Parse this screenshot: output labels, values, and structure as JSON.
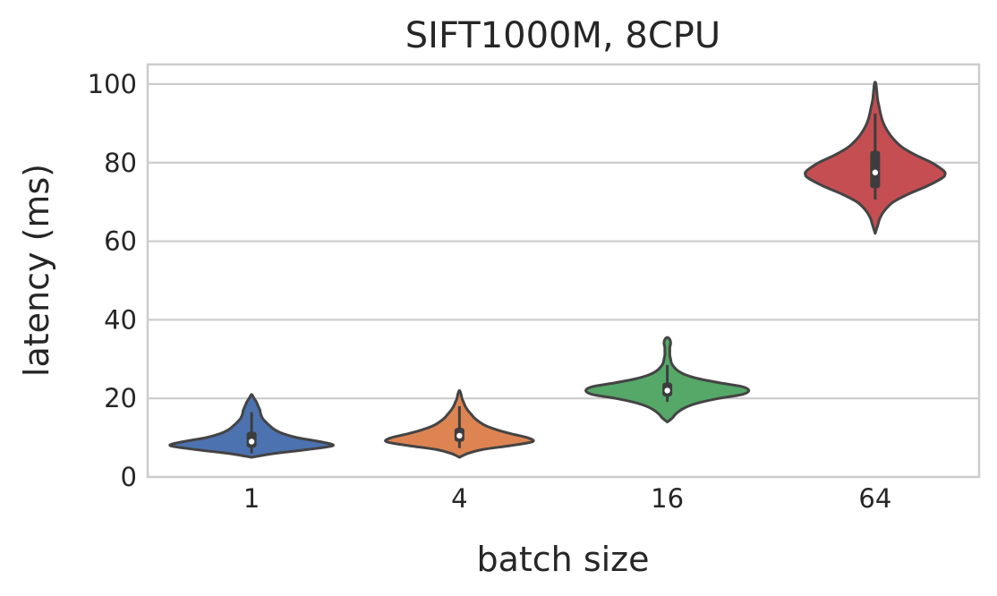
{
  "chart_data": {
    "type": "violin",
    "title": "SIFT1000M, 8CPU",
    "xlabel": "batch size",
    "ylabel": "latency (ms)",
    "ylim": [
      0,
      105
    ],
    "yticks": [
      0,
      20,
      40,
      60,
      80,
      100
    ],
    "categories": [
      "1",
      "4",
      "16",
      "64"
    ],
    "grid": true,
    "colors": [
      "#4c72b0",
      "#dd8452",
      "#55a868",
      "#c44e52"
    ],
    "series": [
      {
        "category": "1",
        "min": 5,
        "max": 21,
        "q1": 7.5,
        "median": 9,
        "q3": 11.5,
        "whisker_high": 16.5,
        "density": [
          [
            5,
            0.05
          ],
          [
            6,
            0.28
          ],
          [
            7,
            0.68
          ],
          [
            8,
            0.98
          ],
          [
            9,
            0.82
          ],
          [
            10,
            0.55
          ],
          [
            11,
            0.38
          ],
          [
            12,
            0.28
          ],
          [
            13,
            0.22
          ],
          [
            14,
            0.17
          ],
          [
            15,
            0.13
          ],
          [
            16,
            0.11
          ],
          [
            17,
            0.1
          ],
          [
            18,
            0.08
          ],
          [
            19,
            0.06
          ],
          [
            20,
            0.03
          ],
          [
            21,
            0.0
          ]
        ]
      },
      {
        "category": "4",
        "min": 5,
        "max": 22,
        "q1": 9,
        "median": 10.5,
        "q3": 12.5,
        "whisker_high": 18,
        "density": [
          [
            5,
            0.03
          ],
          [
            6,
            0.1
          ],
          [
            7,
            0.28
          ],
          [
            8,
            0.62
          ],
          [
            9,
            0.88
          ],
          [
            10,
            0.82
          ],
          [
            11,
            0.62
          ],
          [
            12,
            0.45
          ],
          [
            13,
            0.32
          ],
          [
            14,
            0.24
          ],
          [
            15,
            0.18
          ],
          [
            16,
            0.14
          ],
          [
            17,
            0.1
          ],
          [
            18,
            0.07
          ],
          [
            19,
            0.05
          ],
          [
            20,
            0.03
          ],
          [
            21,
            0.02
          ],
          [
            22,
            0.0
          ]
        ]
      },
      {
        "category": "16",
        "min": 14,
        "max": 35.5,
        "q1": 20.5,
        "median": 22,
        "q3": 24,
        "whisker_high": 28.5,
        "density": [
          [
            14,
            0.03
          ],
          [
            15,
            0.06
          ],
          [
            16,
            0.1
          ],
          [
            17,
            0.16
          ],
          [
            18,
            0.25
          ],
          [
            19,
            0.4
          ],
          [
            20,
            0.62
          ],
          [
            21,
            0.9
          ],
          [
            22,
            0.98
          ],
          [
            23,
            0.9
          ],
          [
            24,
            0.62
          ],
          [
            25,
            0.38
          ],
          [
            26,
            0.22
          ],
          [
            27,
            0.13
          ],
          [
            28,
            0.08
          ],
          [
            29,
            0.05
          ],
          [
            30,
            0.04
          ],
          [
            31,
            0.03
          ],
          [
            32,
            0.03
          ],
          [
            33,
            0.03
          ],
          [
            34,
            0.04
          ],
          [
            35,
            0.03
          ],
          [
            35.5,
            0.0
          ]
        ]
      },
      {
        "category": "64",
        "min": 62,
        "max": 100.5,
        "q1": 73.5,
        "median": 77.5,
        "q3": 83,
        "whisker_high": 92.5,
        "density": [
          [
            62,
            0.01
          ],
          [
            64,
            0.03
          ],
          [
            66,
            0.06
          ],
          [
            68,
            0.12
          ],
          [
            70,
            0.22
          ],
          [
            72,
            0.4
          ],
          [
            74,
            0.62
          ],
          [
            76,
            0.8
          ],
          [
            77,
            0.84
          ],
          [
            78,
            0.82
          ],
          [
            80,
            0.68
          ],
          [
            82,
            0.48
          ],
          [
            84,
            0.32
          ],
          [
            86,
            0.22
          ],
          [
            88,
            0.15
          ],
          [
            90,
            0.1
          ],
          [
            92,
            0.07
          ],
          [
            94,
            0.05
          ],
          [
            96,
            0.03
          ],
          [
            98,
            0.02
          ],
          [
            100,
            0.01
          ],
          [
            100.5,
            0.0
          ]
        ]
      }
    ]
  }
}
